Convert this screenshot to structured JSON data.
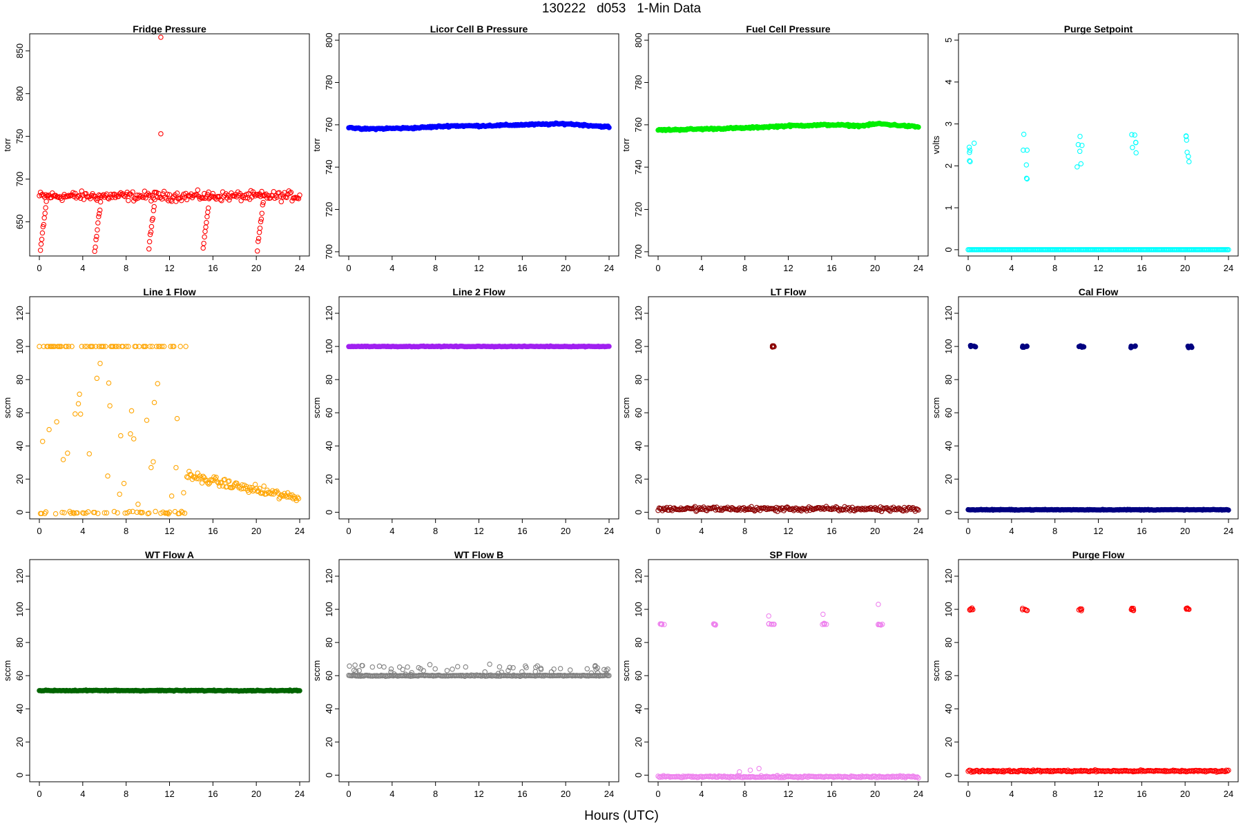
{
  "figure": {
    "title": "130222   d053   1-Min Data",
    "xlabel": "Hours (UTC)"
  },
  "chart_data": [
    {
      "type": "scatter",
      "title": "Fridge Pressure",
      "ylabel": "torr",
      "color": "#ff0000",
      "marker": "open",
      "xlim": [
        0,
        24
      ],
      "ylim": [
        610,
        870
      ],
      "yticks": [
        650,
        700,
        750,
        800,
        850
      ],
      "xticks": [
        0,
        4,
        8,
        12,
        16,
        20,
        24
      ],
      "pattern": {
        "baseline": 680,
        "noise": 8,
        "dips": [
          {
            "x": 0.1,
            "min": 618
          },
          {
            "x": 5.1,
            "min": 615
          },
          {
            "x": 10.1,
            "min": 622
          },
          {
            "x": 15.1,
            "min": 620
          },
          {
            "x": 20.1,
            "min": 618
          }
        ],
        "outliers": [
          [
            11.2,
            866
          ],
          [
            11.2,
            753
          ]
        ]
      }
    },
    {
      "type": "scatter",
      "title": "Licor Cell B Pressure",
      "ylabel": "torr",
      "color": "#0000ff",
      "marker": "filled",
      "xlim": [
        0,
        24
      ],
      "ylim": [
        698,
        803
      ],
      "yticks": [
        700,
        720,
        740,
        760,
        780,
        800
      ],
      "xticks": [
        0,
        4,
        8,
        12,
        16,
        20,
        24
      ],
      "pattern": {
        "line": [
          [
            0,
            759
          ],
          [
            1,
            758
          ],
          [
            6,
            758.5
          ],
          [
            9.5,
            759.5
          ],
          [
            12,
            759.5
          ],
          [
            16,
            760
          ],
          [
            20,
            760.5
          ],
          [
            24,
            759
          ]
        ],
        "noise": 0.6
      }
    },
    {
      "type": "scatter",
      "title": "Fuel Cell Pressure",
      "ylabel": "torr",
      "color": "#00ee00",
      "marker": "filled",
      "xlim": [
        0,
        24
      ],
      "ylim": [
        698,
        803
      ],
      "yticks": [
        700,
        720,
        740,
        760,
        780,
        800
      ],
      "xticks": [
        0,
        4,
        8,
        12,
        16,
        20,
        24
      ],
      "pattern": {
        "line": [
          [
            0,
            757.5
          ],
          [
            8,
            758.5
          ],
          [
            12,
            759.5
          ],
          [
            16,
            760
          ],
          [
            18.7,
            759.5
          ],
          [
            20.3,
            760.5
          ],
          [
            24,
            759
          ]
        ],
        "noise": 0.6
      }
    },
    {
      "type": "scatter",
      "title": "Purge Setpoint",
      "ylabel": "volts",
      "color": "#00ffff",
      "marker": "open",
      "xlim": [
        0,
        24
      ],
      "ylim": [
        -0.15,
        5.15
      ],
      "yticks": [
        0,
        1,
        2,
        3,
        4,
        5
      ],
      "xticks": [
        0,
        4,
        8,
        12,
        16,
        20,
        24
      ],
      "pattern": {
        "baseline": 0,
        "noise": 0,
        "clusters": [
          {
            "x": 0.1,
            "y": 2.42
          },
          {
            "x": 5.0,
            "y": 2.42
          },
          {
            "x": 10.0,
            "y": 2.42
          },
          {
            "x": 15.0,
            "y": 2.42
          },
          {
            "x": 20.0,
            "y": 2.42
          }
        ]
      }
    },
    {
      "type": "scatter",
      "title": "Line 1 Flow",
      "ylabel": "sccm",
      "color": "#ffa500",
      "marker": "open",
      "xlim": [
        0,
        24
      ],
      "ylim": [
        -4,
        130
      ],
      "yticks": [
        0,
        20,
        40,
        60,
        80,
        100,
        120
      ],
      "xticks": [
        0,
        4,
        8,
        12,
        16,
        20,
        24
      ],
      "pattern": {
        "segments": [
          {
            "from": 0,
            "to": 13.6,
            "high": 100,
            "low": -1,
            "scatter": 45
          },
          {
            "from": 13.6,
            "to": 24,
            "start": 22,
            "end": 8,
            "noise": 4
          }
        ]
      }
    },
    {
      "type": "scatter",
      "title": "Line 2 Flow",
      "ylabel": "sccm",
      "color": "#a020f0",
      "marker": "filled",
      "xlim": [
        0,
        24
      ],
      "ylim": [
        -4,
        130
      ],
      "yticks": [
        0,
        20,
        40,
        60,
        80,
        100,
        120
      ],
      "xticks": [
        0,
        4,
        8,
        12,
        16,
        20,
        24
      ],
      "pattern": {
        "baseline": 100,
        "noise": 0.3
      }
    },
    {
      "type": "scatter",
      "title": "LT Flow",
      "ylabel": "sccm",
      "color": "#8b0000",
      "marker": "open",
      "xlim": [
        0,
        24
      ],
      "ylim": [
        -4,
        130
      ],
      "yticks": [
        0,
        20,
        40,
        60,
        80,
        100,
        120
      ],
      "xticks": [
        0,
        4,
        8,
        12,
        16,
        20,
        24
      ],
      "pattern": {
        "baseline": 2,
        "noise": 2,
        "clusters": [
          {
            "x": 10.2,
            "y": 100
          }
        ]
      }
    },
    {
      "type": "scatter",
      "title": "Cal Flow",
      "ylabel": "sccm",
      "color": "#000080",
      "marker": "filled",
      "xlim": [
        0,
        24
      ],
      "ylim": [
        -4,
        130
      ],
      "yticks": [
        0,
        20,
        40,
        60,
        80,
        100,
        120
      ],
      "xticks": [
        0,
        4,
        8,
        12,
        16,
        20,
        24
      ],
      "pattern": {
        "baseline": 1.5,
        "noise": 0.3,
        "clusters": [
          {
            "x": 0.2,
            "y": 100
          },
          {
            "x": 5.0,
            "y": 100
          },
          {
            "x": 10.2,
            "y": 100
          },
          {
            "x": 15.0,
            "y": 100
          },
          {
            "x": 20.2,
            "y": 100
          }
        ]
      }
    },
    {
      "type": "scatter",
      "title": "WT Flow A",
      "ylabel": "sccm",
      "color": "#006400",
      "marker": "filled",
      "xlim": [
        0,
        24
      ],
      "ylim": [
        -4,
        130
      ],
      "yticks": [
        0,
        20,
        40,
        60,
        80,
        100,
        120
      ],
      "xticks": [
        0,
        4,
        8,
        12,
        16,
        20,
        24
      ],
      "pattern": {
        "baseline": 51,
        "noise": 0.4
      }
    },
    {
      "type": "scatter",
      "title": "WT Flow B",
      "ylabel": "sccm",
      "color": "#808080",
      "marker": "open",
      "xlim": [
        0,
        24
      ],
      "ylim": [
        -4,
        130
      ],
      "yticks": [
        0,
        20,
        40,
        60,
        80,
        100,
        120
      ],
      "xticks": [
        0,
        4,
        8,
        12,
        16,
        20,
        24
      ],
      "pattern": {
        "baseline": 60,
        "noise": 0.5,
        "spikes": 60,
        "spikeMax": 67
      }
    },
    {
      "type": "scatter",
      "title": "SP Flow",
      "ylabel": "sccm",
      "color": "#ee82ee",
      "marker": "open",
      "xlim": [
        0,
        24
      ],
      "ylim": [
        -4,
        130
      ],
      "yticks": [
        0,
        20,
        40,
        60,
        80,
        100,
        120
      ],
      "xticks": [
        0,
        4,
        8,
        12,
        16,
        20,
        24
      ],
      "pattern": {
        "baseline": -1,
        "noise": 0.8,
        "clusters": [
          {
            "x": 0.2,
            "y": 91
          },
          {
            "x": 5.1,
            "y": 91
          },
          {
            "x": 10.2,
            "y": 91
          },
          {
            "x": 15.1,
            "y": 91
          },
          {
            "x": 20.2,
            "y": 91
          }
        ],
        "outliers": [
          [
            10.2,
            96
          ],
          [
            15.2,
            97
          ],
          [
            20.3,
            103
          ],
          [
            8.5,
            3
          ],
          [
            9.3,
            4
          ],
          [
            7.5,
            2
          ]
        ]
      }
    },
    {
      "type": "scatter",
      "title": "Purge Flow",
      "ylabel": "sccm",
      "color": "#ff0000",
      "marker": "open",
      "xlim": [
        0,
        24
      ],
      "ylim": [
        -4,
        130
      ],
      "yticks": [
        0,
        20,
        40,
        60,
        80,
        100,
        120
      ],
      "xticks": [
        0,
        4,
        8,
        12,
        16,
        20,
        24
      ],
      "pattern": {
        "baseline": 2.5,
        "noise": 0.8,
        "clusters": [
          {
            "x": 0.1,
            "y": 100
          },
          {
            "x": 5.0,
            "y": 100
          },
          {
            "x": 10.1,
            "y": 100
          },
          {
            "x": 15.0,
            "y": 100
          },
          {
            "x": 20.1,
            "y": 100
          }
        ]
      }
    }
  ]
}
